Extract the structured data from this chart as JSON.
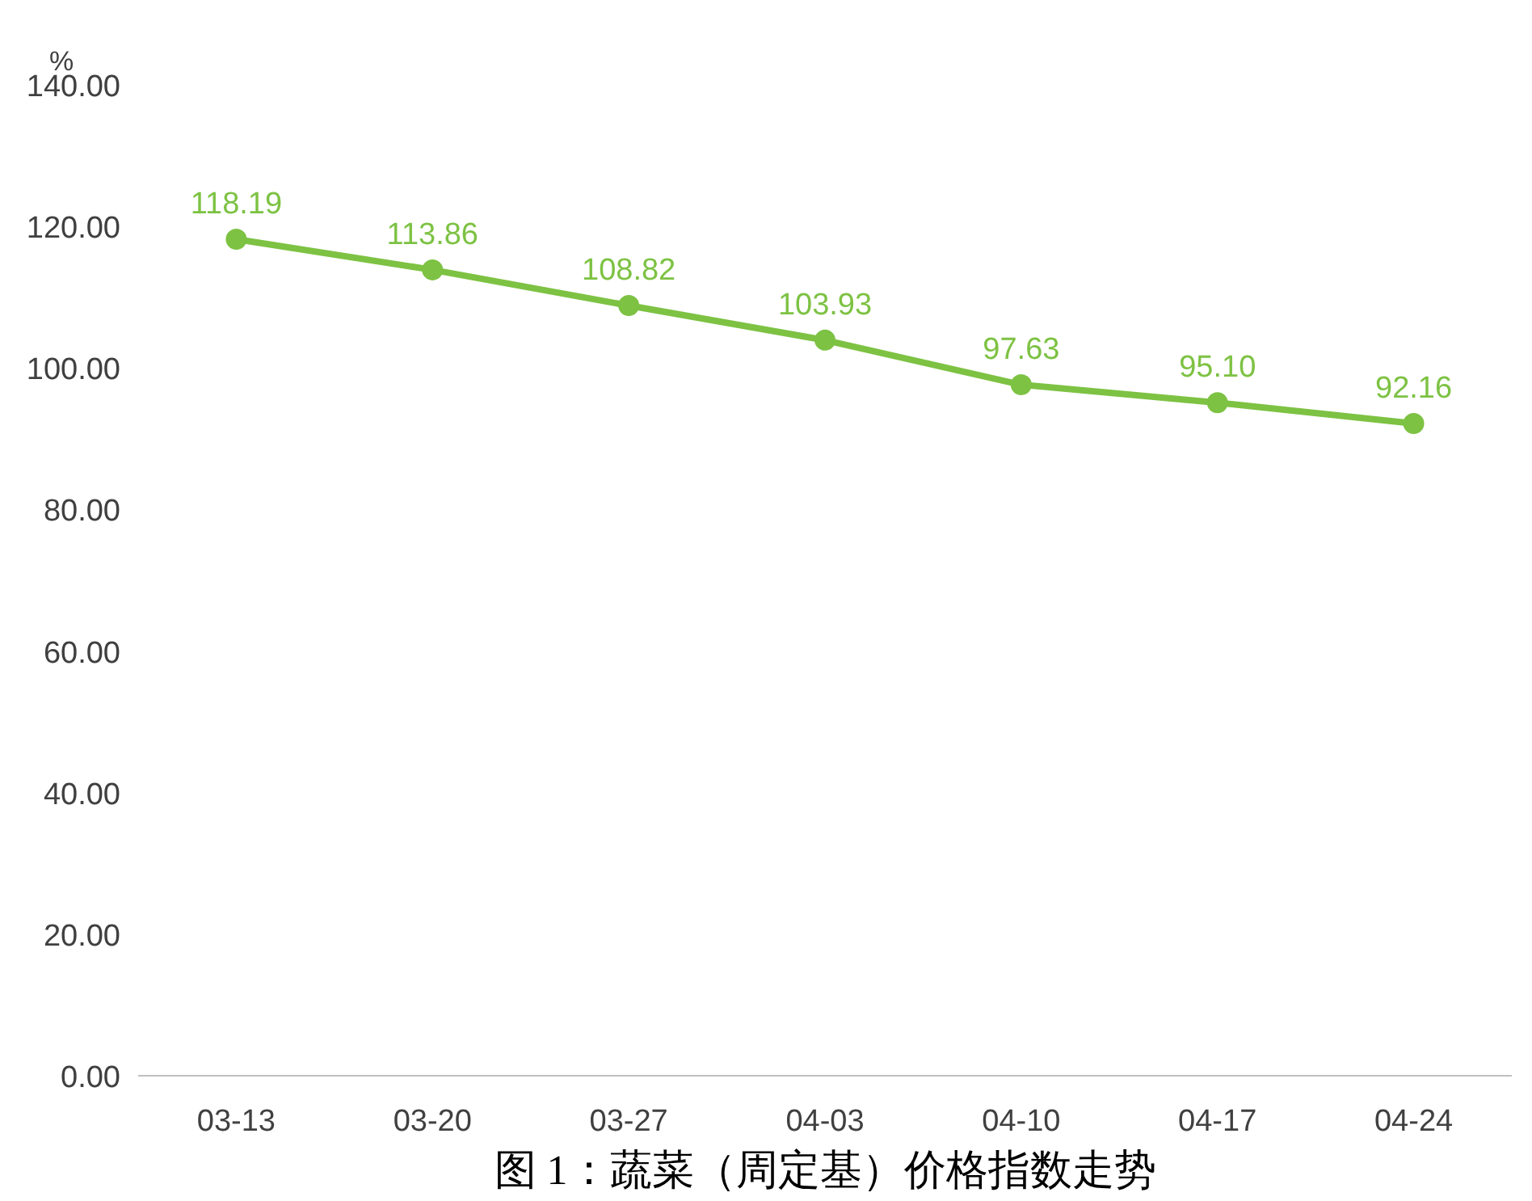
{
  "chart_data": {
    "type": "line",
    "title": "图 1：蔬菜（周定基）价格指数走势",
    "ylabel": "%",
    "categories": [
      "03-13",
      "03-20",
      "03-27",
      "04-03",
      "04-10",
      "04-17",
      "04-24"
    ],
    "series": [
      {
        "color": "#7dc243",
        "values": [
          118.19,
          113.86,
          108.82,
          103.93,
          97.63,
          95.1,
          92.16
        ]
      }
    ],
    "value_labels": [
      "118.19",
      "113.86",
      "108.82",
      "103.93",
      "97.63",
      "95.10",
      "92.16"
    ],
    "ylim": [
      0,
      140
    ],
    "yticks": [
      {
        "value": 0,
        "label": "0.00"
      },
      {
        "value": 20,
        "label": "20.00"
      },
      {
        "value": 40,
        "label": "40.00"
      },
      {
        "value": 60,
        "label": "60.00"
      },
      {
        "value": 80,
        "label": "80.00"
      },
      {
        "value": 100,
        "label": "100.00"
      },
      {
        "value": 120,
        "label": "120.00"
      },
      {
        "value": 140,
        "label": "140.00"
      }
    ],
    "grid": false,
    "marker": "circle",
    "line_style": "solid"
  }
}
